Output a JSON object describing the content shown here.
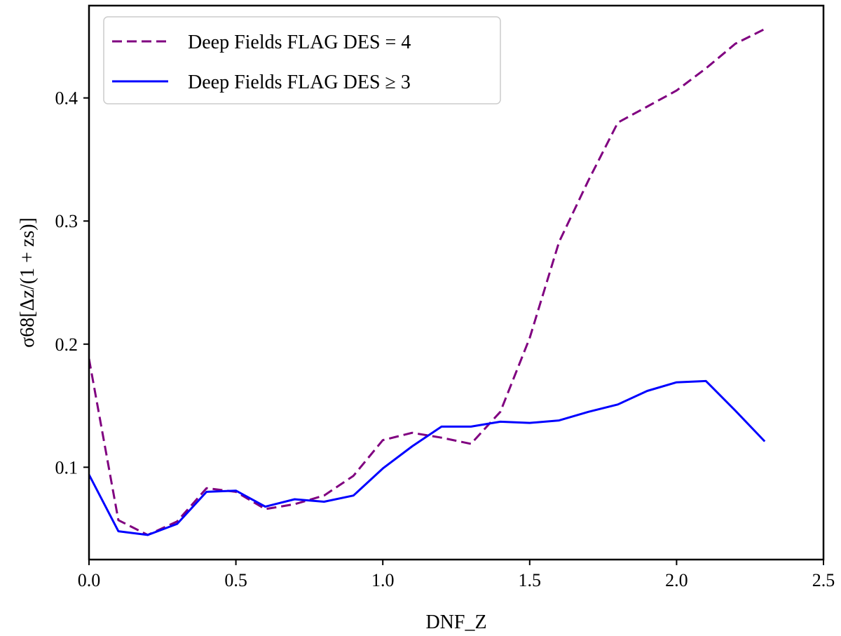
{
  "chart_data": {
    "type": "line",
    "title": "",
    "xlabel": "DNF_Z",
    "ylabel": "σ68[Δz/(1 + zs)]",
    "xlim": [
      0.0,
      2.5
    ],
    "ylim": [
      0.025,
      0.475
    ],
    "xticks": [
      0.0,
      0.5,
      1.0,
      1.5,
      2.0,
      2.5
    ],
    "xtick_labels": [
      "0.0",
      "0.5",
      "1.0",
      "1.5",
      "2.0",
      "2.5"
    ],
    "yticks": [
      0.1,
      0.2,
      0.3,
      0.4
    ],
    "ytick_labels": [
      "0.1",
      "0.2",
      "0.3",
      "0.4"
    ],
    "grid": false,
    "legend_position": "top-left",
    "series": [
      {
        "name": "Deep Fields FLAG DES = 4",
        "style": "dashed",
        "color": "#800080",
        "x": [
          0.0,
          0.1,
          0.2,
          0.3,
          0.4,
          0.5,
          0.6,
          0.7,
          0.8,
          0.9,
          1.0,
          1.1,
          1.2,
          1.3,
          1.4,
          1.5,
          1.6,
          1.7,
          1.8,
          1.9,
          2.0,
          2.1,
          2.2,
          2.3
        ],
        "y": [
          0.188,
          0.057,
          0.045,
          0.056,
          0.083,
          0.08,
          0.066,
          0.07,
          0.077,
          0.093,
          0.122,
          0.128,
          0.124,
          0.119,
          0.145,
          0.205,
          0.283,
          0.333,
          0.38,
          0.393,
          0.406,
          0.424,
          0.444,
          0.456
        ]
      },
      {
        "name": "Deep Fields FLAG DES ≥ 3",
        "style": "solid",
        "color": "#0000ff",
        "x": [
          0.0,
          0.1,
          0.2,
          0.3,
          0.4,
          0.5,
          0.6,
          0.7,
          0.8,
          0.9,
          1.0,
          1.1,
          1.2,
          1.3,
          1.4,
          1.5,
          1.6,
          1.7,
          1.8,
          1.9,
          2.0,
          2.1,
          2.2,
          2.3
        ],
        "y": [
          0.094,
          0.048,
          0.045,
          0.054,
          0.08,
          0.081,
          0.068,
          0.074,
          0.072,
          0.077,
          0.099,
          0.117,
          0.133,
          0.133,
          0.137,
          0.136,
          0.138,
          0.145,
          0.151,
          0.162,
          0.169,
          0.17,
          0.146,
          0.121
        ]
      }
    ]
  }
}
